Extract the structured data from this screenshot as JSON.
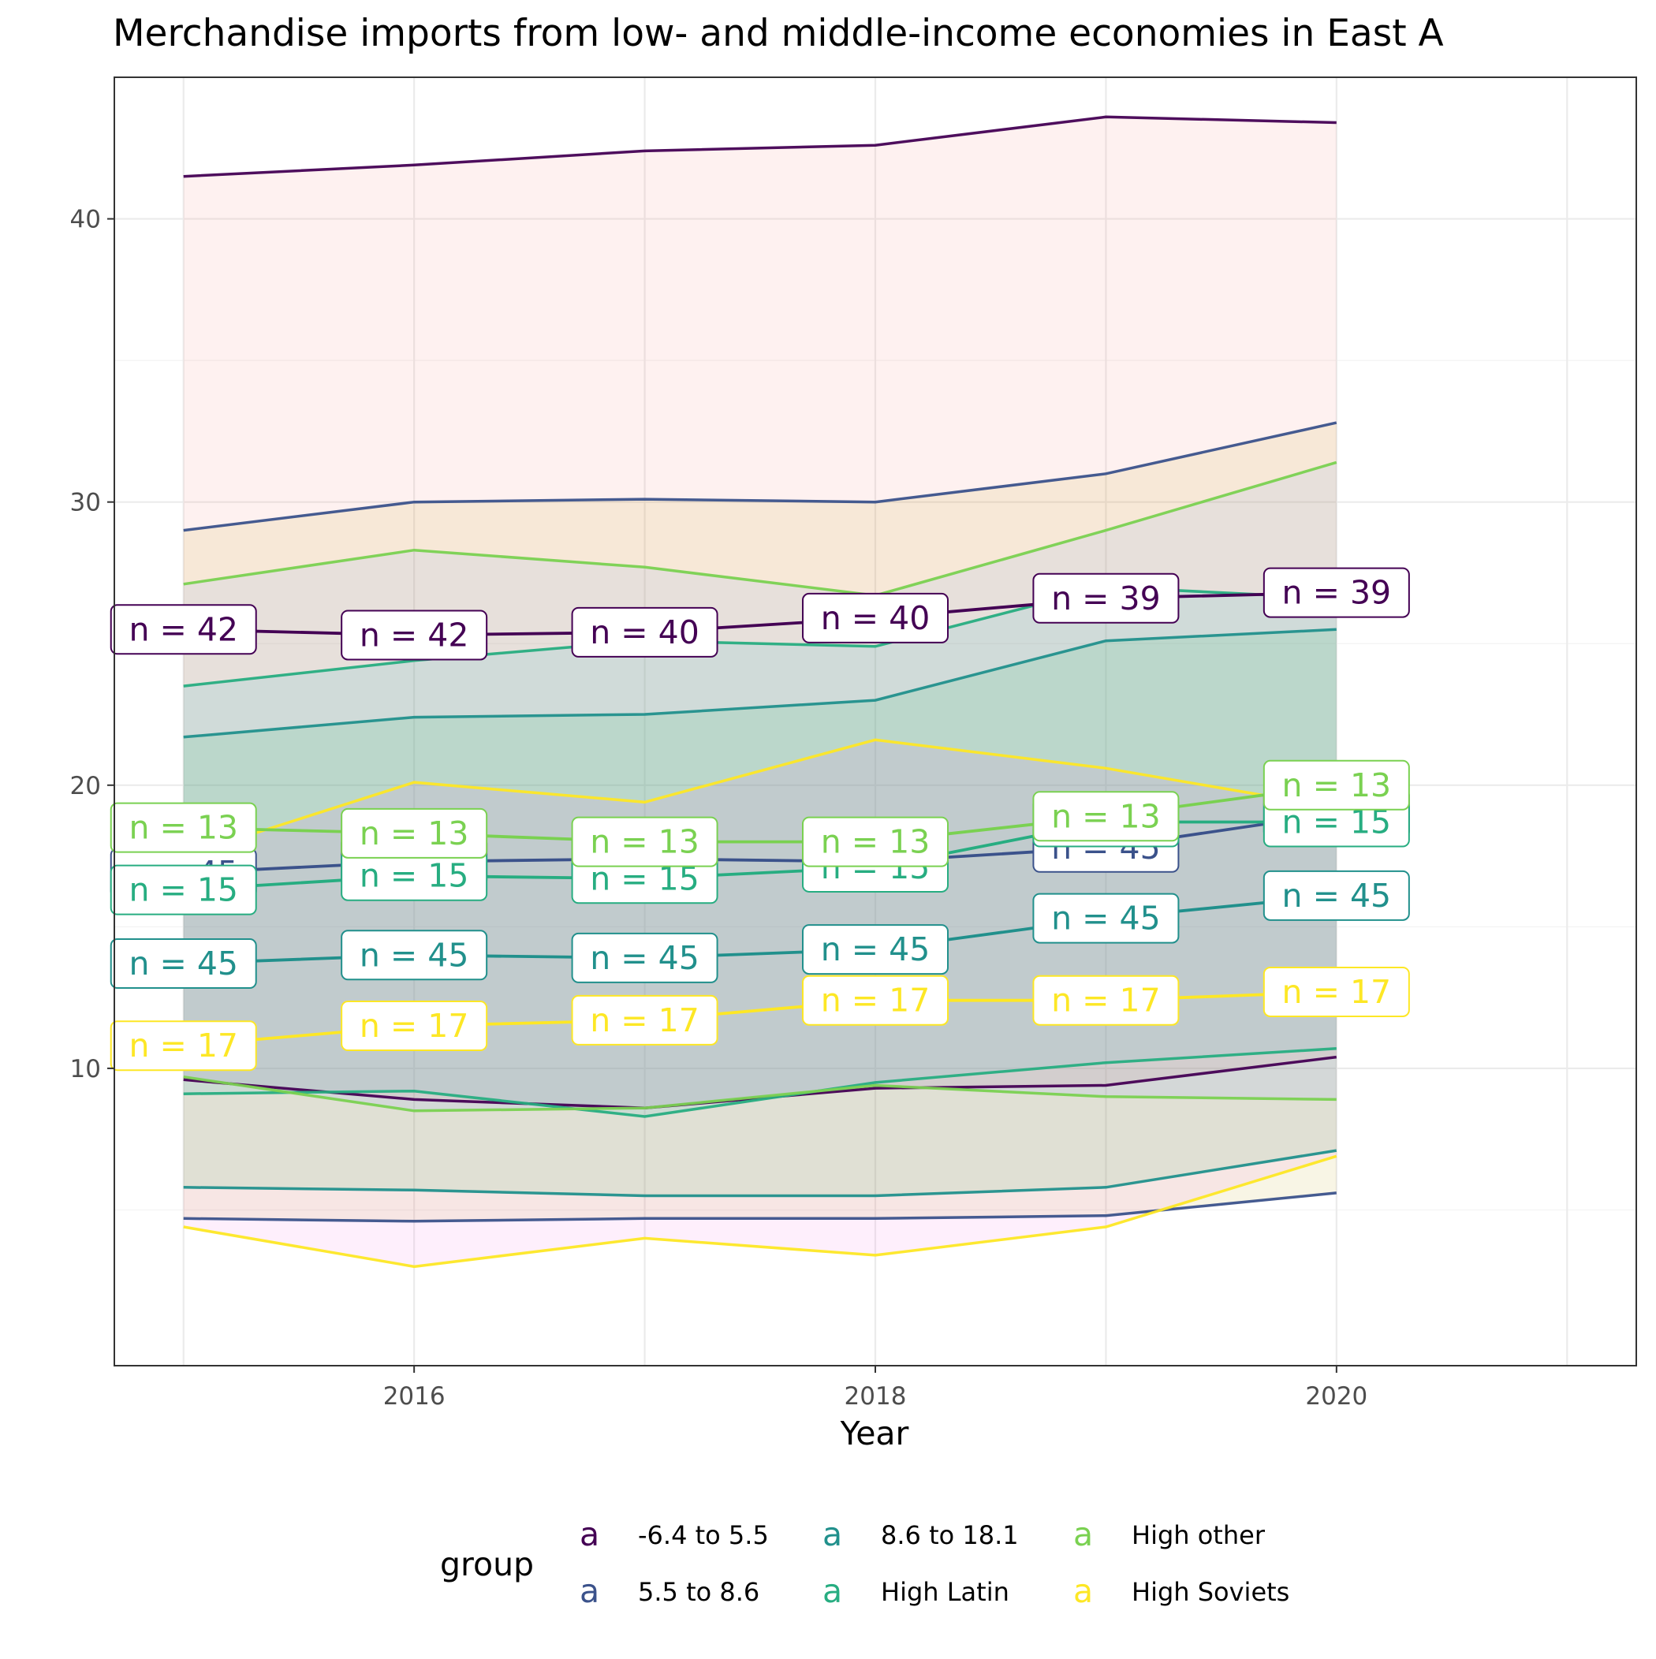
{
  "chart_data": {
    "type": "line",
    "title": "Merchandise imports from low- and middle-income economies in East A",
    "xlabel": "Year",
    "ylabel": "",
    "xlim": [
      2014.7,
      2021.3
    ],
    "ylim": [
      -0.5,
      45
    ],
    "x_ticks": [
      2016,
      2018,
      2020
    ],
    "y_ticks": [
      10,
      20,
      30,
      40
    ],
    "grid": true,
    "legend": {
      "title": "group",
      "placement": "bottom",
      "key_glyph": "a"
    },
    "x": [
      2015,
      2016,
      2017,
      2018,
      2019,
      2020
    ],
    "series": [
      {
        "name": "-6.4 to 5.5",
        "color": "#440154",
        "fill": "#F8766D",
        "median": [
          25.5,
          25.3,
          25.4,
          25.9,
          26.6,
          26.8
        ],
        "upper": [
          41.5,
          41.9,
          42.4,
          42.6,
          43.6,
          43.4
        ],
        "lower": [
          9.6,
          8.9,
          8.6,
          9.3,
          9.4,
          10.4
        ],
        "labels": [
          "n = 42",
          "n = 42",
          "n = 40",
          "n = 40",
          "n = 39",
          "n = 39"
        ]
      },
      {
        "name": "5.5 to 8.6",
        "color": "#3B528B",
        "fill": "#B79F00",
        "median": [
          16.9,
          17.3,
          17.4,
          17.3,
          17.8,
          19.0
        ],
        "upper": [
          29.0,
          30.0,
          30.1,
          30.0,
          31.0,
          32.8
        ],
        "lower": [
          4.7,
          4.6,
          4.7,
          4.7,
          4.8,
          5.6
        ],
        "labels": [
          "n = 45",
          "n = 45",
          "n = 45",
          "n = 45",
          "n = 45",
          "n = 45"
        ]
      },
      {
        "name": "8.6 to 18.1",
        "color": "#21908C",
        "fill": "#00BA38",
        "median": [
          13.7,
          14.0,
          13.9,
          14.2,
          15.3,
          16.1
        ],
        "upper": [
          21.7,
          22.4,
          22.5,
          23.0,
          25.1,
          25.5
        ],
        "lower": [
          5.8,
          5.7,
          5.5,
          5.5,
          5.8,
          7.1
        ],
        "labels": [
          "n = 45",
          "n = 45",
          "n = 45",
          "n = 45",
          "n = 45",
          "n = 45"
        ]
      },
      {
        "name": "High Latin",
        "color": "#27AD81",
        "fill": "#00BFC4",
        "median": [
          16.3,
          16.8,
          16.7,
          17.1,
          18.7,
          18.7
        ],
        "upper": [
          23.5,
          24.4,
          25.1,
          24.9,
          27.0,
          26.6
        ],
        "lower": [
          9.1,
          9.2,
          8.3,
          9.5,
          10.2,
          10.7
        ],
        "labels": [
          "n = 15",
          "n = 15",
          "n = 15",
          "n = 15",
          "n = 15",
          "n = 15"
        ]
      },
      {
        "name": "High other",
        "color": "#7AD151",
        "fill": "#619CFF",
        "median": [
          18.5,
          18.3,
          18.0,
          18.0,
          18.9,
          20.0
        ],
        "upper": [
          27.1,
          28.3,
          27.7,
          26.7,
          29.0,
          31.4
        ],
        "lower": [
          9.7,
          8.5,
          8.6,
          9.4,
          9.0,
          8.9
        ],
        "labels": [
          "n = 13",
          "n = 13",
          "n = 13",
          "n = 13",
          "n = 13",
          "n = 13"
        ]
      },
      {
        "name": "High Soviets",
        "color": "#FDE725",
        "fill": "#F564E3",
        "median": [
          10.8,
          11.5,
          11.7,
          12.4,
          12.4,
          12.7
        ],
        "upper": [
          17.5,
          20.1,
          19.4,
          21.6,
          20.6,
          19.2
        ],
        "lower": [
          4.4,
          3.0,
          4.0,
          3.4,
          4.4,
          6.9
        ],
        "labels": [
          "n = 17",
          "n = 17",
          "n = 17",
          "n = 17",
          "n = 17",
          "n = 17"
        ]
      }
    ]
  }
}
